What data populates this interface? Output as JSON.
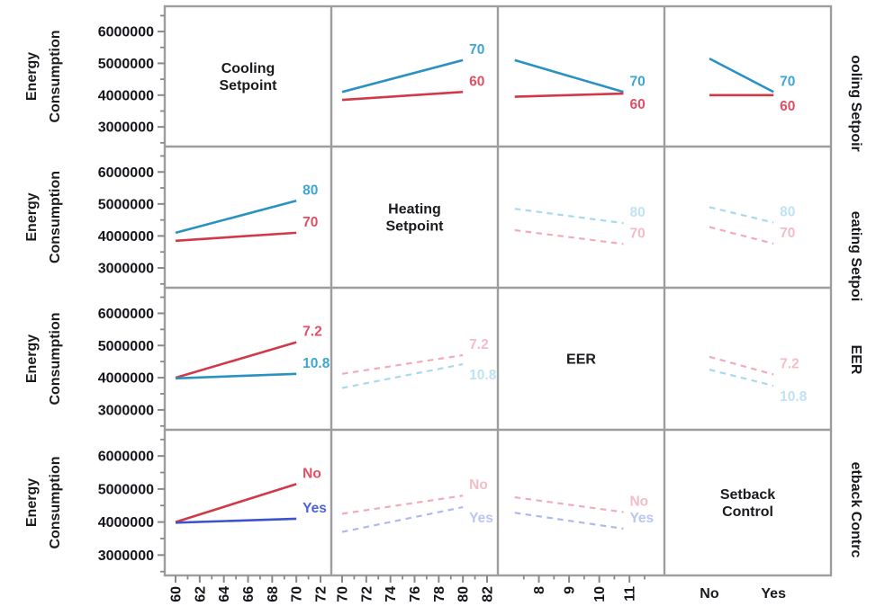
{
  "chart_data": {
    "type": "line",
    "subtype": "interaction-plot-matrix",
    "ylabel": [
      "Energy",
      "Consumption"
    ],
    "y_axis": {
      "tick_values": [
        6000000,
        5000000,
        4000000,
        3000000
      ],
      "tick_labels": [
        "6000000",
        "5000000",
        "4000000",
        "3000000"
      ],
      "minor_ticks": [
        6500000,
        5500000,
        4500000,
        3500000,
        2500000
      ],
      "domain": [
        2450000,
        6700000
      ]
    },
    "grid": "off",
    "legend_position": "inline-labels",
    "line_colors": {
      "blue": "#2a92c2",
      "red": "#d03a48",
      "royal": "#3d53c9",
      "fpink": "#f1acb8",
      "fblue": "#a9d8ef",
      "fperi": "#adbaec"
    },
    "label_colors": {
      "blue": "#3ea6d2",
      "red": "#e04f63",
      "royal": "#4c63d8",
      "fpink": "#f4bcc7",
      "fblue": "#bfe3f3",
      "fperi": "#bac6f1"
    },
    "frame_color": "#9d9d9d",
    "tick_color": "#8a8a8a",
    "text_color": "#1b1b1f",
    "factors": [
      {
        "name": "Cooling Setpoint",
        "diagonal_lines": [
          "Cooling",
          "Setpoint"
        ],
        "right_label": "ooling Setpoir",
        "axis": {
          "kind": "numeric",
          "min": 60,
          "max": 72,
          "majors": [
            60,
            62,
            64,
            66,
            68,
            70,
            72
          ],
          "minors": [
            61,
            63,
            65,
            67,
            69,
            71
          ],
          "tick_labels": [
            "60",
            "62",
            "64",
            "66",
            "68",
            "70",
            "72"
          ]
        },
        "line_points": [
          60,
          70
        ]
      },
      {
        "name": "Heating Setpoint",
        "diagonal_lines": [
          "Heating",
          "Setpoint"
        ],
        "right_label": "eating Setpoi",
        "axis": {
          "kind": "numeric",
          "min": 70,
          "max": 82,
          "majors": [
            70,
            72,
            74,
            76,
            78,
            80,
            82
          ],
          "minors": [
            71,
            73,
            75,
            77,
            79,
            81
          ],
          "tick_labels": [
            "70",
            "72",
            "74",
            "76",
            "78",
            "80",
            "82"
          ]
        },
        "line_points": [
          70,
          80
        ]
      },
      {
        "name": "EER",
        "diagonal_lines": [
          "EER"
        ],
        "right_label": "EER",
        "axis": {
          "kind": "numeric",
          "min": 7.0,
          "max": 11.8,
          "majors": [
            8,
            9,
            10,
            11
          ],
          "minors": [
            7.5,
            8.5,
            9.5,
            10.5,
            11.5
          ],
          "tick_labels": [
            "8",
            "9",
            "10",
            "11"
          ]
        },
        "line_points": [
          7.2,
          10.8
        ]
      },
      {
        "name": "Setback Control",
        "diagonal_lines": [
          "Setback",
          "Control"
        ],
        "right_label": "etback Contrc",
        "axis": {
          "kind": "categorical",
          "categories": [
            "No",
            "Yes"
          ],
          "fractions": [
            0.27,
            0.655
          ]
        },
        "line_points": [
          0.27,
          0.655
        ]
      }
    ],
    "cells": [
      {
        "row": 0,
        "col": 1,
        "series": [
          {
            "name": "70",
            "values": [
              4100000,
              5100000
            ],
            "style": "solid",
            "color": "blue"
          },
          {
            "name": "60",
            "values": [
              3850000,
              4100000
            ],
            "style": "solid",
            "color": "red"
          }
        ]
      },
      {
        "row": 0,
        "col": 2,
        "series": [
          {
            "name": "70",
            "values": [
              5100000,
              4100000
            ],
            "style": "solid",
            "color": "blue"
          },
          {
            "name": "60",
            "values": [
              3950000,
              4050000
            ],
            "style": "solid",
            "color": "red"
          }
        ]
      },
      {
        "row": 0,
        "col": 3,
        "series": [
          {
            "name": "70",
            "values": [
              5150000,
              4100000
            ],
            "style": "solid",
            "color": "blue"
          },
          {
            "name": "60",
            "values": [
              4000000,
              4000000
            ],
            "style": "solid",
            "color": "red"
          }
        ]
      },
      {
        "row": 1,
        "col": 0,
        "series": [
          {
            "name": "80",
            "values": [
              4100000,
              5100000
            ],
            "style": "solid",
            "color": "blue"
          },
          {
            "name": "70",
            "values": [
              3850000,
              4100000
            ],
            "style": "solid",
            "color": "red"
          }
        ]
      },
      {
        "row": 1,
        "col": 2,
        "series": [
          {
            "name": "80",
            "values": [
              4850000,
              4400000
            ],
            "style": "dashed",
            "color": "fblue"
          },
          {
            "name": "70",
            "values": [
              4180000,
              3750000
            ],
            "style": "dashed",
            "color": "fpink"
          }
        ]
      },
      {
        "row": 1,
        "col": 3,
        "series": [
          {
            "name": "80",
            "values": [
              4900000,
              4420000
            ],
            "style": "dashed",
            "color": "fblue"
          },
          {
            "name": "70",
            "values": [
              4280000,
              3760000
            ],
            "style": "dashed",
            "color": "fpink"
          }
        ]
      },
      {
        "row": 2,
        "col": 0,
        "series": [
          {
            "name": "7.2",
            "values": [
              4000000,
              5100000
            ],
            "style": "solid",
            "color": "red"
          },
          {
            "name": "10.8",
            "values": [
              3980000,
              4120000
            ],
            "style": "solid",
            "color": "blue"
          }
        ]
      },
      {
        "row": 2,
        "col": 1,
        "series": [
          {
            "name": "7.2",
            "values": [
              4120000,
              4700000
            ],
            "style": "dashed",
            "color": "fpink"
          },
          {
            "name": "10.8",
            "values": [
              3680000,
              4420000
            ],
            "style": "dashed",
            "color": "fblue"
          }
        ]
      },
      {
        "row": 2,
        "col": 3,
        "series": [
          {
            "name": "7.2",
            "values": [
              4650000,
              4100000
            ],
            "style": "dashed",
            "color": "fpink"
          },
          {
            "name": "10.8",
            "values": [
              4250000,
              3750000
            ],
            "style": "dashed",
            "color": "fblue"
          }
        ]
      },
      {
        "row": 3,
        "col": 0,
        "series": [
          {
            "name": "No",
            "values": [
              4000000,
              5150000
            ],
            "style": "solid",
            "color": "red"
          },
          {
            "name": "Yes",
            "values": [
              3980000,
              4100000
            ],
            "style": "solid",
            "color": "royal"
          }
        ]
      },
      {
        "row": 3,
        "col": 1,
        "series": [
          {
            "name": "No",
            "values": [
              4250000,
              4800000
            ],
            "style": "dashed",
            "color": "fpink"
          },
          {
            "name": "Yes",
            "values": [
              3700000,
              4450000
            ],
            "style": "dashed",
            "color": "fperi"
          }
        ]
      },
      {
        "row": 3,
        "col": 2,
        "series": [
          {
            "name": "No",
            "values": [
              4750000,
              4300000
            ],
            "style": "dashed",
            "color": "fpink"
          },
          {
            "name": "Yes",
            "values": [
              4280000,
              3800000
            ],
            "style": "dashed",
            "color": "fperi"
          }
        ]
      }
    ]
  }
}
